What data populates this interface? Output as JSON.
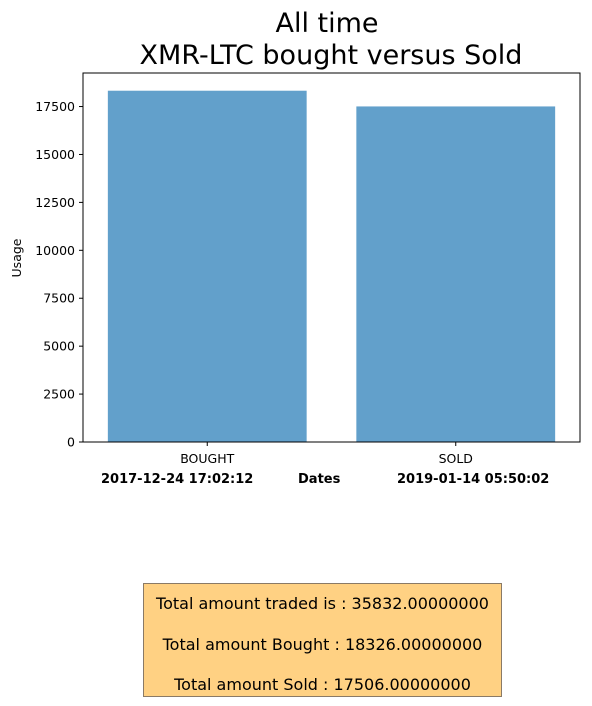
{
  "chart_data": {
    "type": "bar",
    "title": [
      "All time",
      "XMR-LTC bought versus Sold"
    ],
    "categories": [
      "BOUGHT",
      "SOLD"
    ],
    "values": [
      18326,
      17506
    ],
    "xlabel": "Dates",
    "ylabel": "Usage",
    "ylim": [
      0,
      19250
    ],
    "yticks": [
      0,
      2500,
      5000,
      7500,
      10000,
      12500,
      15000,
      17500
    ],
    "bar_color": "#62a0cb",
    "start_date": "2017-12-24 17:02:12",
    "end_date": "2019-01-14 05:50:02"
  },
  "summary": {
    "total_traded": "Total amount traded is : 35832.00000000",
    "total_bought": "Total amount Bought : 18326.00000000",
    "total_sold": "Total amount Sold : 17506.00000000"
  }
}
